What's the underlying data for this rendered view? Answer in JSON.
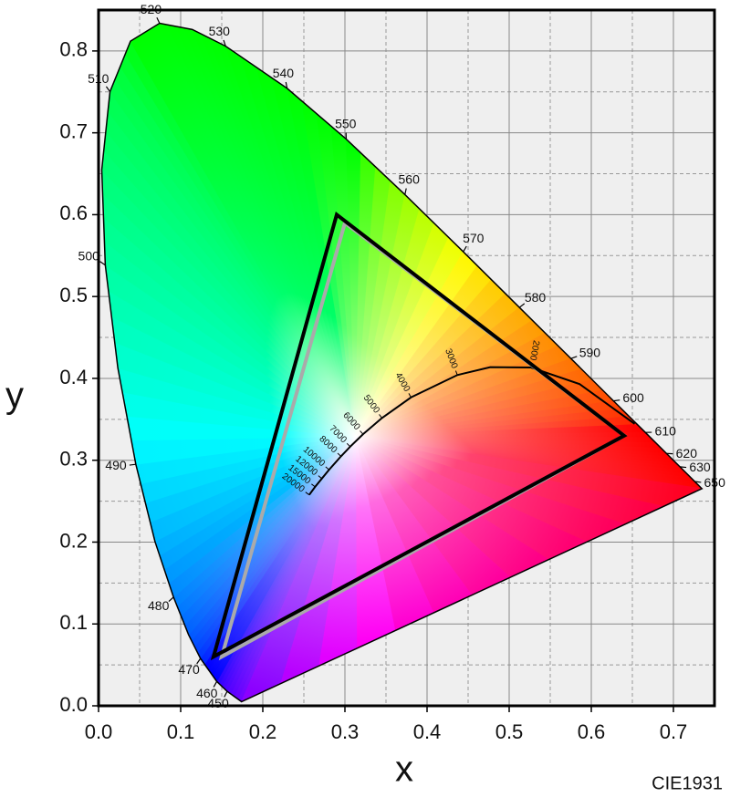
{
  "chart_data": {
    "type": "chromaticity",
    "x_label": "x",
    "y_label": "y",
    "annotation": "CIE1931",
    "xlim": [
      0,
      0.75
    ],
    "ylim": [
      0,
      0.85
    ],
    "xticks": [
      {
        "value": 0,
        "label": "0.0"
      },
      0.1,
      0.2,
      0.3,
      0.4,
      0.5,
      0.6,
      0.7
    ],
    "yticks": [
      {
        "value": 0,
        "label": "0.0"
      },
      0.1,
      0.2,
      0.3,
      0.4,
      0.5,
      0.6,
      0.7,
      0.8
    ],
    "xminorticks": [
      0.05,
      0.15,
      0.25,
      0.35,
      0.45,
      0.55,
      0.65
    ],
    "yminorticks": [
      0.05,
      0.15,
      0.25,
      0.35,
      0.45,
      0.55,
      0.65,
      0.75
    ],
    "grid": true,
    "spectral_locus": {
      "color": "#000000",
      "labels": [
        null,
        "450",
        "460",
        "470",
        null,
        "480",
        null,
        "490",
        null,
        "500",
        null,
        "510",
        null,
        "520",
        null,
        "530",
        "540",
        "550",
        "560",
        "570",
        "580",
        "590",
        "600",
        "610",
        "620",
        "630",
        "650",
        null
      ],
      "x": [
        0.1741,
        0.1566,
        0.144,
        0.1241,
        0.1096,
        0.0913,
        0.0687,
        0.0454,
        0.0235,
        0.0082,
        0.0039,
        0.0139,
        0.0389,
        0.0743,
        0.1142,
        0.1547,
        0.2296,
        0.3016,
        0.3731,
        0.4441,
        0.5125,
        0.5752,
        0.627,
        0.6658,
        0.6915,
        0.7079,
        0.726,
        0.7347
      ],
      "y": [
        0.005,
        0.0177,
        0.0297,
        0.0578,
        0.0868,
        0.1327,
        0.2007,
        0.295,
        0.4127,
        0.5384,
        0.6548,
        0.7502,
        0.812,
        0.8338,
        0.8262,
        0.8059,
        0.7543,
        0.6923,
        0.6245,
        0.5547,
        0.4866,
        0.4242,
        0.3725,
        0.334,
        0.3083,
        0.292,
        0.274,
        0.2653
      ]
    },
    "planckian_locus": {
      "color": "#000000",
      "labels": [
        null,
        null,
        "2000",
        null,
        "3000",
        "4000",
        "5000",
        "6000",
        "7000",
        "8000",
        "10000",
        "12000",
        "15000",
        "20000"
      ],
      "x": [
        0.6528,
        0.5857,
        0.5267,
        0.477,
        0.4369,
        0.3805,
        0.3451,
        0.3221,
        0.3064,
        0.2952,
        0.2807,
        0.2719,
        0.2637,
        0.2565
      ],
      "y": [
        0.3444,
        0.3931,
        0.4133,
        0.4137,
        0.4041,
        0.3768,
        0.3516,
        0.3318,
        0.3166,
        0.3048,
        0.2884,
        0.2776,
        0.2675,
        0.2577
      ]
    },
    "gamuts": [
      {
        "color": "#aaaaaa",
        "width": 4,
        "x": [
          0.64,
          0.3,
          0.15
        ],
        "y": [
          0.33,
          0.59,
          0.06
        ]
      },
      {
        "color": "#000000",
        "width": 4,
        "x": [
          0.64,
          0.29,
          0.14
        ],
        "y": [
          0.33,
          0.6,
          0.06
        ]
      }
    ]
  }
}
